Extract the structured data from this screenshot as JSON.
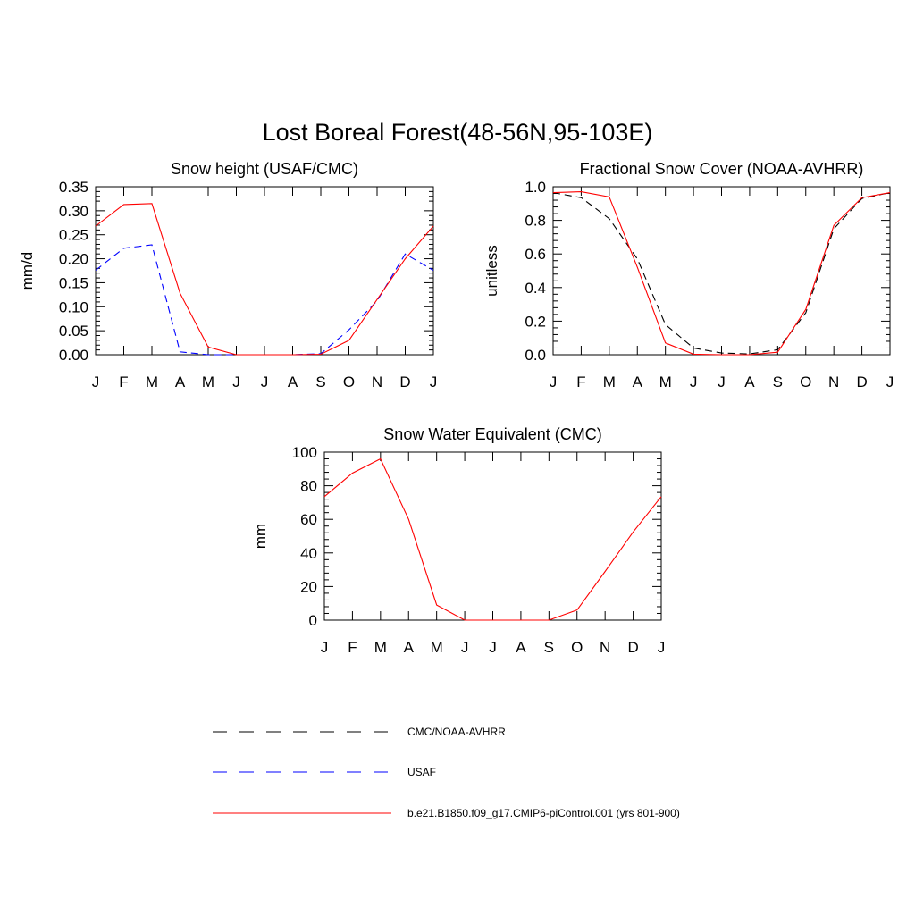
{
  "figure": {
    "title": "Lost Boreal Forest(48-56N,95-103E)"
  },
  "chart_data": [
    {
      "type": "line",
      "title": "Snow height (USAF/CMC)",
      "xlabel": "",
      "ylabel": "mm/d",
      "x": [
        "J",
        "F",
        "M",
        "A",
        "M",
        "J",
        "J",
        "A",
        "S",
        "O",
        "N",
        "D",
        "J"
      ],
      "ylim": [
        0,
        0.35
      ],
      "yticks": [
        "0.00",
        "0.05",
        "0.10",
        "0.15",
        "0.20",
        "0.25",
        "0.30",
        "0.35"
      ],
      "ytick_values": [
        0,
        0.05,
        0.1,
        0.15,
        0.2,
        0.25,
        0.3,
        0.35
      ],
      "series": [
        {
          "name": "CMC/NOAA-AVHRR",
          "color": "#000000",
          "dash": "dashed",
          "values": [
            0,
            0,
            0,
            0,
            0,
            0,
            0,
            0,
            0,
            0,
            0,
            0,
            0
          ]
        },
        {
          "name": "USAF",
          "color": "#0000ff",
          "dash": "dashed",
          "values": [
            0.176,
            0.222,
            0.229,
            0.006,
            0,
            0,
            0,
            0,
            0.002,
            0.052,
            0.112,
            0.21,
            0.176
          ]
        },
        {
          "name": "b.e21.B1850.f09_g17.CMIP6-piControl.001 (yrs 801-900)",
          "color": "#ff0000",
          "dash": "solid",
          "values": [
            0.268,
            0.313,
            0.315,
            0.128,
            0.016,
            0,
            0,
            0,
            0.001,
            0.03,
            0.115,
            0.2,
            0.268
          ]
        }
      ]
    },
    {
      "type": "line",
      "title": "Fractional Snow Cover (NOAA-AVHRR)",
      "xlabel": "",
      "ylabel": "unitless",
      "x": [
        "J",
        "F",
        "M",
        "A",
        "M",
        "J",
        "J",
        "A",
        "S",
        "O",
        "N",
        "D",
        "J"
      ],
      "ylim": [
        0,
        1.0
      ],
      "yticks": [
        "0.0",
        "0.2",
        "0.4",
        "0.6",
        "0.8",
        "1.0"
      ],
      "ytick_values": [
        0,
        0.2,
        0.4,
        0.6,
        0.8,
        1.0
      ],
      "series": [
        {
          "name": "CMC/NOAA-AVHRR",
          "color": "#000000",
          "dash": "dashed",
          "values": [
            0.965,
            0.935,
            0.81,
            0.57,
            0.18,
            0.04,
            0.01,
            0.005,
            0.03,
            0.25,
            0.75,
            0.93,
            0.965
          ]
        },
        {
          "name": "b.e21.B1850.f09_g17.CMIP6-piControl.001 (yrs 801-900)",
          "color": "#ff0000",
          "dash": "solid",
          "values": [
            0.965,
            0.97,
            0.94,
            0.52,
            0.07,
            0.003,
            0,
            0,
            0.015,
            0.27,
            0.77,
            0.935,
            0.965
          ]
        }
      ]
    },
    {
      "type": "line",
      "title": "Snow Water Equivalent (CMC)",
      "xlabel": "",
      "ylabel": "mm",
      "x": [
        "J",
        "F",
        "M",
        "A",
        "M",
        "J",
        "J",
        "A",
        "S",
        "O",
        "N",
        "D",
        "J"
      ],
      "ylim": [
        0,
        100
      ],
      "yticks": [
        "0",
        "20",
        "40",
        "60",
        "80",
        "100"
      ],
      "ytick_values": [
        0,
        20,
        40,
        60,
        80,
        100
      ],
      "series": [
        {
          "name": "CMC/NOAA-AVHRR",
          "color": "#000000",
          "dash": "dashed",
          "values": [
            0,
            0,
            0,
            0,
            0,
            0,
            0,
            0,
            0,
            0,
            0,
            0,
            0
          ]
        },
        {
          "name": "b.e21.B1850.f09_g17.CMIP6-piControl.001 (yrs 801-900)",
          "color": "#ff0000",
          "dash": "solid",
          "values": [
            73.5,
            87.5,
            96,
            60,
            9,
            0,
            0,
            0,
            0,
            6,
            29,
            52.5,
            73.5
          ]
        }
      ]
    }
  ],
  "legend": {
    "placement": "bottom-center",
    "entries": [
      {
        "label": "CMC/NOAA-AVHRR",
        "color": "#000000",
        "dash": "dashed"
      },
      {
        "label": "USAF",
        "color": "#0000ff",
        "dash": "dashed"
      },
      {
        "label": "b.e21.B1850.f09_g17.CMIP6-piControl.001 (yrs 801-900)",
        "color": "#ff0000",
        "dash": "solid"
      }
    ]
  }
}
